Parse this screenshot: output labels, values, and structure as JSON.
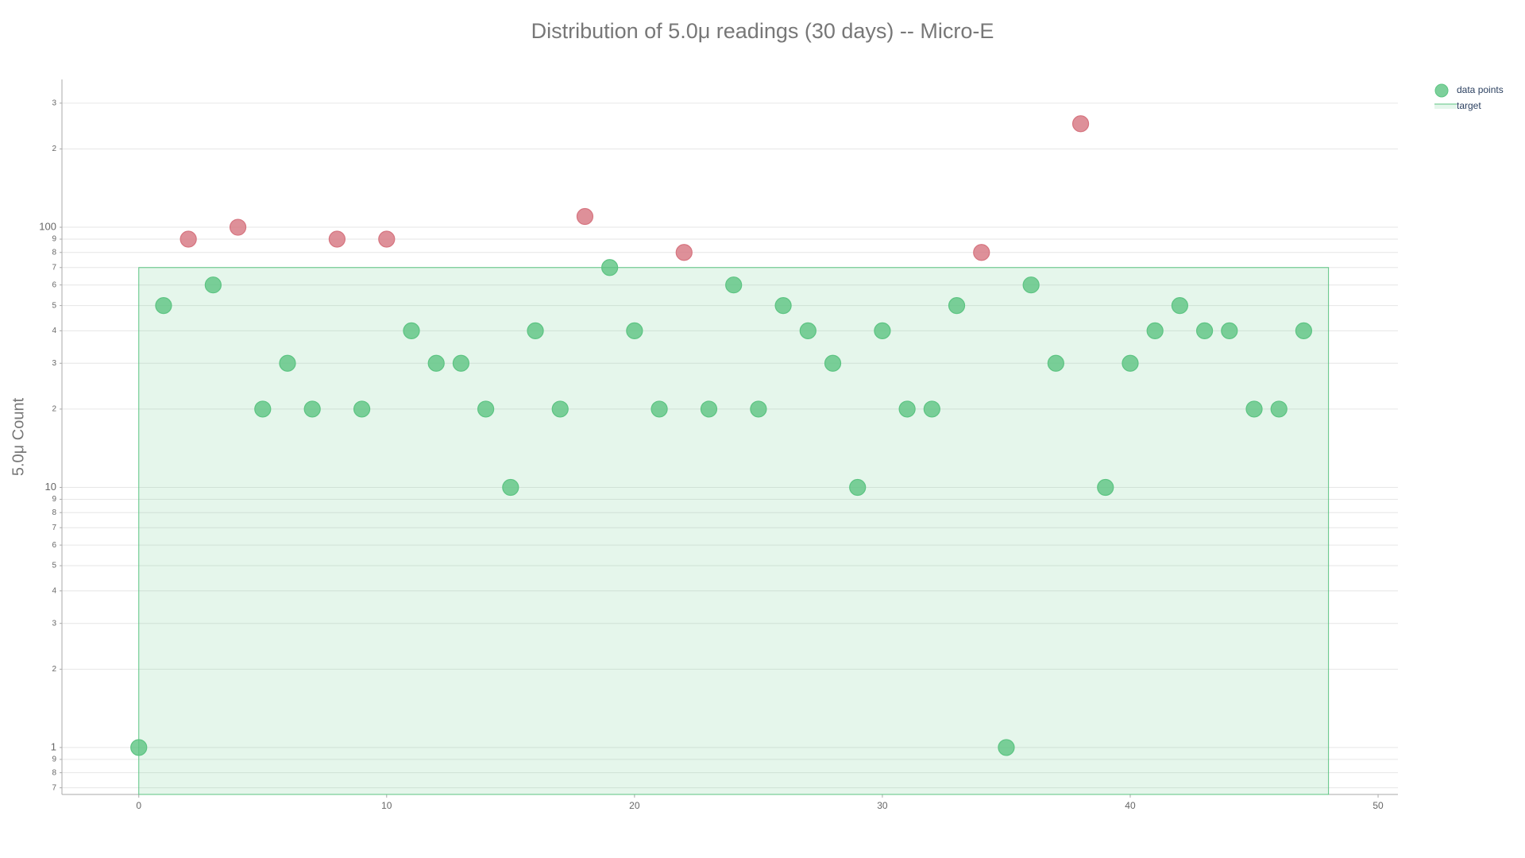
{
  "chart_data": {
    "type": "scatter",
    "title": "Distribution of 5.0μ readings (30 days) -- Micro-E",
    "y_label": "5.0μ Count",
    "log_y": true,
    "grid": true,
    "legend": "top-right",
    "xlim": [
      -3.1,
      50.8
    ],
    "xticks": [
      0,
      10,
      20,
      30,
      40,
      50
    ],
    "ylim": [
      0.66,
      370
    ],
    "yticks": [
      {
        "value": 0.7,
        "label": "7"
      },
      {
        "value": 0.8,
        "label": "8"
      },
      {
        "value": 0.9,
        "label": "9"
      },
      1,
      {
        "value": 2,
        "label": "2"
      },
      {
        "value": 3,
        "label": "3"
      },
      {
        "value": 4,
        "label": "4"
      },
      {
        "value": 5,
        "label": "5"
      },
      {
        "value": 6,
        "label": "6"
      },
      {
        "value": 7,
        "label": "7"
      },
      {
        "value": 8,
        "label": "8"
      },
      {
        "value": 9,
        "label": "9"
      },
      10,
      {
        "value": 20,
        "label": "2"
      },
      {
        "value": 30,
        "label": "3"
      },
      {
        "value": 40,
        "label": "4"
      },
      {
        "value": 50,
        "label": "5"
      },
      {
        "value": 60,
        "label": "6"
      },
      {
        "value": 70,
        "label": "7"
      },
      {
        "value": 80,
        "label": "8"
      },
      {
        "value": 90,
        "label": "9"
      },
      100,
      {
        "value": 200,
        "label": "2"
      },
      {
        "value": 300,
        "label": "3"
      }
    ],
    "series": [
      {
        "name": "data points",
        "color": "#5cc482",
        "above_target_color": "#d6747f",
        "x": [
          0,
          1,
          2,
          3,
          4,
          5,
          6,
          7,
          8,
          9,
          10,
          11,
          12,
          13,
          14,
          15,
          16,
          17,
          18,
          19,
          20,
          21,
          22,
          23,
          24,
          25,
          26,
          27,
          28,
          29,
          30,
          31,
          32,
          33,
          34,
          35,
          36,
          37,
          38,
          39,
          40,
          41,
          42,
          43,
          44,
          45,
          46,
          47
        ],
        "values": [
          1,
          50,
          90,
          60,
          100,
          20,
          30,
          20,
          90,
          20,
          90,
          40,
          30,
          30,
          20,
          10,
          40,
          20,
          110,
          70,
          40,
          20,
          80,
          20,
          60,
          20,
          50,
          40,
          30,
          10,
          40,
          20,
          20,
          50,
          80,
          1,
          60,
          30,
          250,
          10,
          30,
          40,
          50,
          40,
          40,
          20,
          20,
          40
        ]
      }
    ],
    "target": {
      "name": "target",
      "color": "#5cc482",
      "x": [
        0,
        48
      ],
      "value": 70
    }
  }
}
